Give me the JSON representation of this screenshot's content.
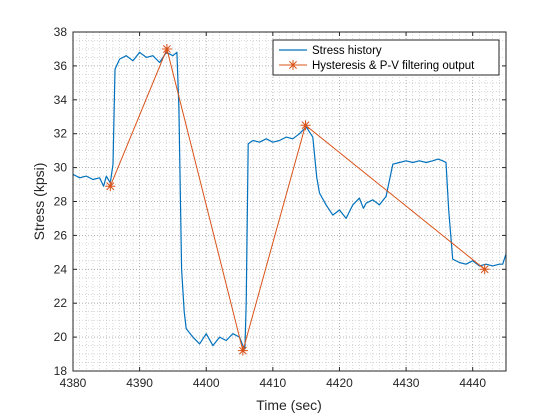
{
  "chart_data": {
    "type": "line",
    "title": "",
    "xlabel": "Time (sec)",
    "ylabel": "Stress (kpsi)",
    "xlim": [
      4380,
      4445
    ],
    "ylim": [
      18,
      38
    ],
    "xticks": [
      4380,
      4390,
      4400,
      4410,
      4420,
      4430,
      4440
    ],
    "yticks": [
      18,
      20,
      22,
      24,
      26,
      28,
      30,
      32,
      34,
      36,
      38
    ],
    "xtick_labels": [
      "4380",
      "4390",
      "4400",
      "4410",
      "4420",
      "4430",
      "4440"
    ],
    "ytick_labels": [
      "18",
      "20",
      "22",
      "24",
      "26",
      "28",
      "30",
      "32",
      "34",
      "36",
      "38"
    ],
    "grid": "major and minor, dotted",
    "legend_position": "top-right",
    "colors": {
      "stress": "#0072BD",
      "filter": "#D95319"
    },
    "series": [
      {
        "name": "Stress history",
        "style": "line",
        "x": [
          4380,
          4381,
          4382,
          4383,
          4384,
          4384.6,
          4385,
          4385.6,
          4386,
          4386.3,
          4387,
          4388,
          4389,
          4390,
          4391,
          4392,
          4393,
          4394,
          4395,
          4395.6,
          4395.9,
          4396.3,
          4396.7,
          4397,
          4398,
          4399,
          4400,
          4401,
          4402,
          4403,
          4404,
          4405,
          4405.5,
          4405.8,
          4406,
          4406.3,
          4407,
          4408,
          4409,
          4410,
          4411,
          4412,
          4413,
          4414,
          4414.5,
          4415,
          4416,
          4416.6,
          4417,
          4418,
          4419,
          4420,
          4421,
          4422,
          4423,
          4423.6,
          4424,
          4425,
          4426,
          4427,
          4428,
          4429,
          4430,
          4431,
          4432,
          4433,
          4434,
          4434.8,
          4435.5,
          4436,
          4436.4,
          4437,
          4438,
          4439,
          4440,
          4441,
          4442,
          4443,
          4444,
          4444.5,
          4445
        ],
        "y": [
          29.6,
          29.4,
          29.5,
          29.3,
          29.4,
          28.9,
          29.5,
          29.1,
          30.2,
          35.8,
          36.4,
          36.6,
          36.3,
          36.8,
          36.5,
          36.6,
          36.2,
          36.8,
          36.6,
          36.8,
          33.5,
          24.0,
          21.5,
          20.5,
          20.0,
          19.6,
          20.2,
          19.5,
          20.0,
          19.8,
          20.2,
          20.0,
          19.5,
          19.3,
          22.0,
          31.4,
          31.6,
          31.5,
          31.7,
          31.5,
          31.6,
          31.8,
          31.7,
          32.0,
          32.2,
          32.4,
          31.8,
          29.4,
          28.5,
          27.8,
          27.2,
          27.5,
          27.0,
          27.8,
          28.2,
          27.6,
          27.9,
          28.1,
          27.8,
          28.3,
          30.2,
          30.3,
          30.4,
          30.3,
          30.4,
          30.3,
          30.4,
          30.5,
          30.4,
          30.3,
          27.5,
          24.6,
          24.4,
          24.3,
          24.5,
          24.2,
          24.3,
          24.2,
          24.3,
          24.3,
          24.9
        ]
      },
      {
        "name": "Hysteresis & P-V filtering output",
        "style": "line+star",
        "x": [
          4385.6,
          4394.1,
          4405.5,
          4414.9,
          4441.8
        ],
        "y": [
          28.9,
          37.0,
          19.2,
          32.5,
          24.0
        ]
      }
    ]
  }
}
